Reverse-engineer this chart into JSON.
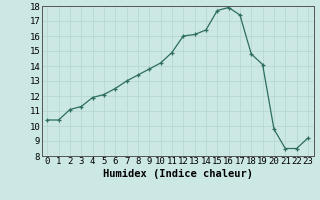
{
  "x": [
    0,
    1,
    2,
    3,
    4,
    5,
    6,
    7,
    8,
    9,
    10,
    11,
    12,
    13,
    14,
    15,
    16,
    17,
    18,
    19,
    20,
    21,
    22,
    23
  ],
  "y": [
    10.4,
    10.4,
    11.1,
    11.3,
    11.9,
    12.1,
    12.5,
    13.0,
    13.4,
    13.8,
    14.2,
    14.9,
    16.0,
    16.1,
    16.4,
    17.7,
    17.9,
    17.4,
    14.8,
    14.1,
    9.8,
    8.5,
    8.5,
    9.2
  ],
  "xlabel": "Humidex (Indice chaleur)",
  "ylim": [
    8,
    18
  ],
  "xlim": [
    -0.5,
    23.5
  ],
  "yticks": [
    8,
    9,
    10,
    11,
    12,
    13,
    14,
    15,
    16,
    17,
    18
  ],
  "xticks": [
    0,
    1,
    2,
    3,
    4,
    5,
    6,
    7,
    8,
    9,
    10,
    11,
    12,
    13,
    14,
    15,
    16,
    17,
    18,
    19,
    20,
    21,
    22,
    23
  ],
  "line_color": "#2d6e5e",
  "marker": "P",
  "marker_size": 2.5,
  "bg_color": "#cce8e4",
  "grid_color": "#b8d8d4",
  "xlabel_fontsize": 7.5,
  "tick_fontsize": 6.5
}
